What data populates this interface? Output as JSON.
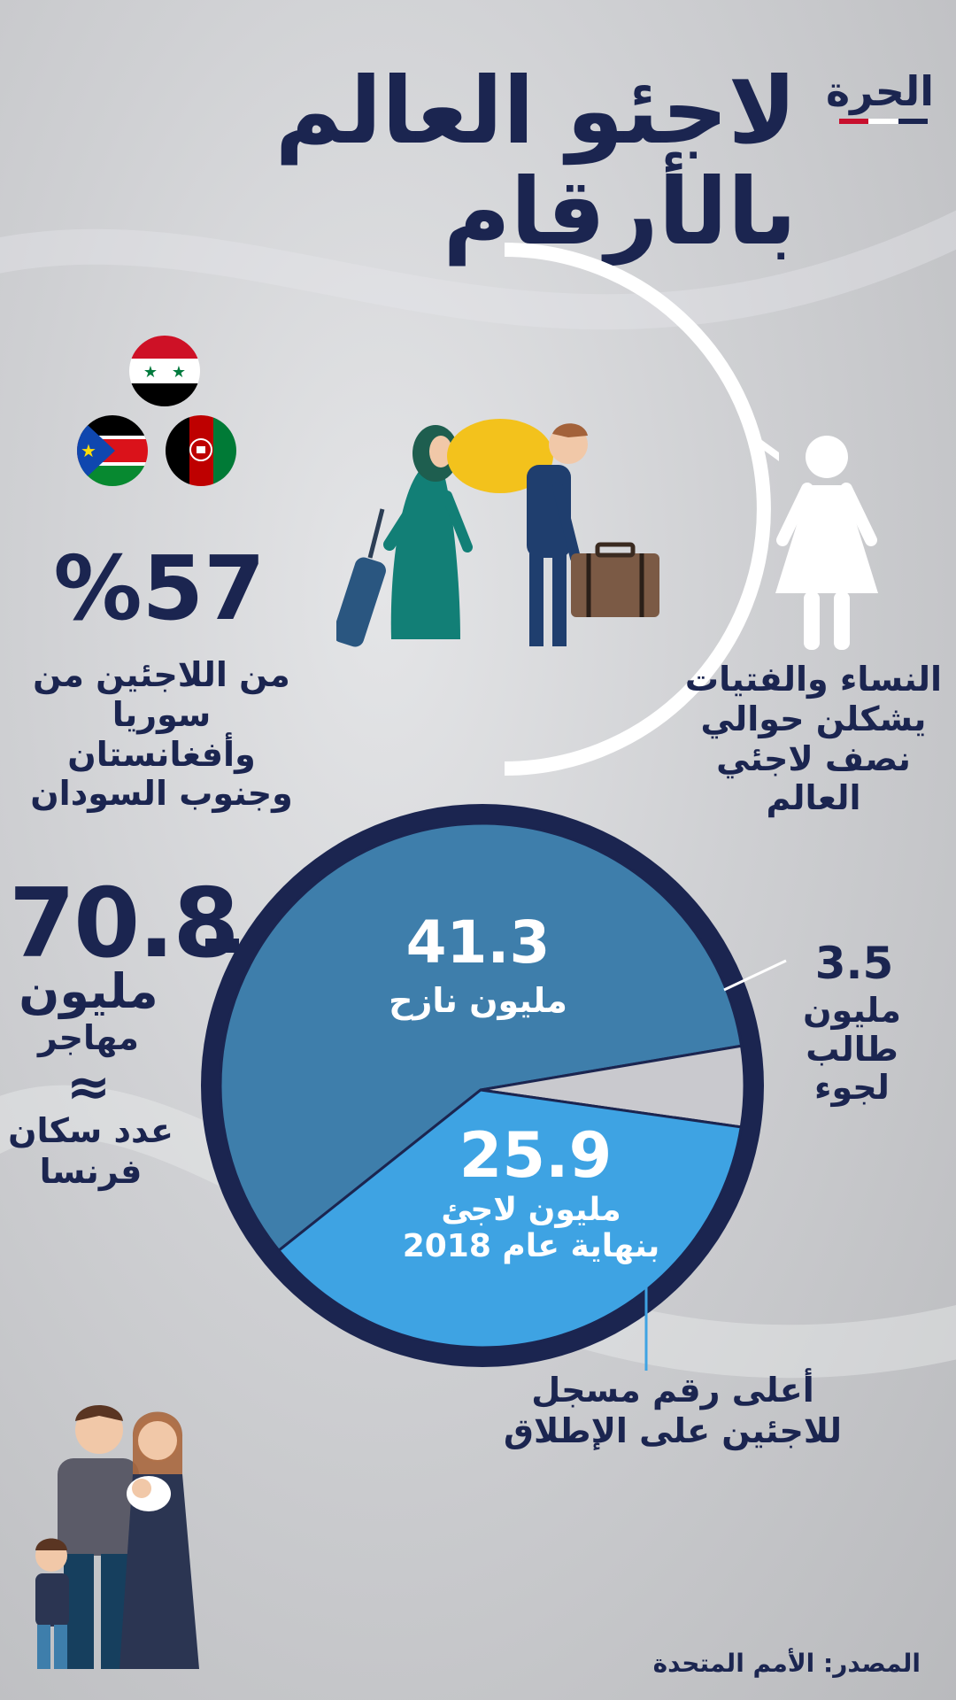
{
  "header": {
    "title": "لاجئو العالم بالأرقام",
    "logo_text": "الحرة",
    "logo_colors": [
      "#c8102e",
      "#ffffff",
      "#1b2550"
    ]
  },
  "origin_stat": {
    "value": "%57",
    "description_lines": [
      "من اللاجئين من",
      "سوريا وأفغانستان",
      "وجنوب السودان"
    ],
    "flags": [
      "syria-flag-icon",
      "south-sudan-flag-icon",
      "afghanistan-flag-icon"
    ]
  },
  "women_stat": {
    "description_lines": [
      "النساء والفتيات",
      "يشكلن حوالي",
      "نصف لاجئي العالم"
    ],
    "icons": [
      "refugee-couple-icon",
      "woman-icon"
    ]
  },
  "total": {
    "value": "70.8",
    "unit": "مليون",
    "label": "مهاجر",
    "approx_symbol": "≈",
    "comparison_lines": [
      "عدد سكان",
      "فرنسا"
    ]
  },
  "chart_data": {
    "type": "pie",
    "total": 70.8,
    "slices": [
      {
        "value": 41.3,
        "display_value": "41.3",
        "label": "مليون نازح",
        "color": "#3e7eab"
      },
      {
        "value": 3.5,
        "display_value": "3.5",
        "label_lines": [
          "مليون طالب",
          "لجوء"
        ],
        "color": "#c9c9ce"
      },
      {
        "value": 25.9,
        "display_value": "25.9",
        "label_lines": [
          "مليون لاجئ",
          "بنهاية عام 2018"
        ],
        "color": "#3ea3e3"
      }
    ],
    "ring_color": "#1b2550"
  },
  "record_note": [
    "أعلى رقم مسجل",
    "للاجئين على الإطلاق"
  ],
  "source": "المصدر: الأمم المتحدة",
  "colors": {
    "navy": "#1b2550",
    "accent_blue": "#3ea3e3",
    "mid_blue": "#3e7eab"
  }
}
